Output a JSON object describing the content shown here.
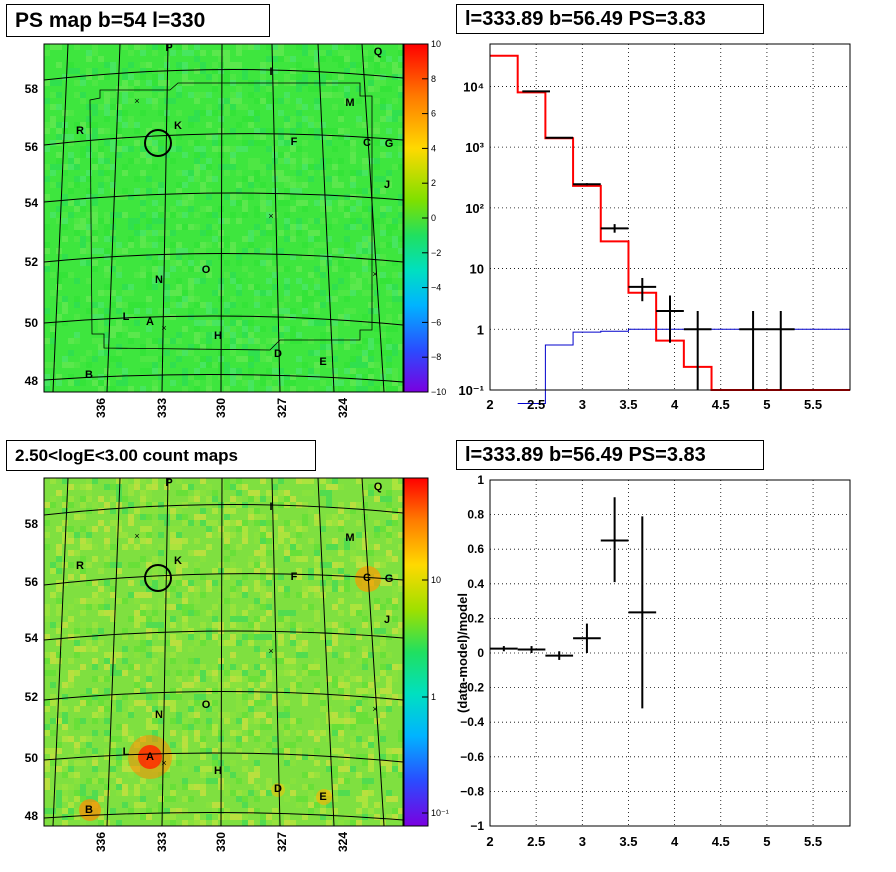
{
  "panels": {
    "top_left": {
      "title": "PS map b=54 l=330"
    },
    "bottom_left": {
      "title": "2.50<logE<3.00 count maps"
    },
    "top_right": {
      "title": "l=333.89 b=56.49 PS=3.83"
    },
    "bottom_right": {
      "title": "l=333.89 b=56.49 PS=3.83"
    }
  },
  "colors": {
    "green": "#34e834",
    "red_model": "#ff0000",
    "blue_bg": "#0000cc",
    "black": "#000000"
  },
  "chart_data": [
    {
      "id": "ps_map",
      "type": "heatmap",
      "title": "PS map b=54 l=330",
      "x_tick_labels": [
        "336",
        "333",
        "330",
        "327",
        "324"
      ],
      "y_tick_labels": [
        "48",
        "50",
        "52",
        "54",
        "56",
        "58"
      ],
      "colorbar": {
        "scale": "linear",
        "min": -10,
        "max": 10,
        "tick_labels": [
          "10",
          "8",
          "6",
          "4",
          "2",
          "0",
          "−2",
          "−4",
          "−6",
          "−8",
          "−10"
        ]
      },
      "source_labels": [
        "P",
        "Q",
        "I",
        "M",
        "R",
        "K",
        "F",
        "C",
        "G",
        "J",
        "N",
        "O",
        "L",
        "A",
        "H",
        "D",
        "E",
        "B"
      ],
      "circle_label": "K"
    },
    {
      "id": "count_map",
      "type": "heatmap",
      "title": "2.50<logE<3.00 count maps",
      "x_tick_labels": [
        "336",
        "333",
        "330",
        "327",
        "324"
      ],
      "y_tick_labels": [
        "48",
        "50",
        "52",
        "54",
        "56",
        "58"
      ],
      "colorbar": {
        "scale": "log",
        "tick_labels": [
          "10",
          "1",
          "10⁻¹"
        ]
      },
      "source_labels": [
        "P",
        "Q",
        "I",
        "M",
        "R",
        "K",
        "F",
        "C",
        "G",
        "J",
        "N",
        "O",
        "L",
        "A",
        "H",
        "D",
        "E",
        "B"
      ]
    },
    {
      "id": "spectrum",
      "type": "line",
      "title": "l=333.89 b=56.49 PS=3.83",
      "y_scale": "log",
      "xlim": [
        2,
        5.9
      ],
      "ylim": [
        0.1,
        50000
      ],
      "x_tick_labels": [
        "2",
        "2.5",
        "3",
        "3.5",
        "4",
        "4.5",
        "5",
        "5.5"
      ],
      "y_tick_labels": [
        "10⁻¹",
        "1",
        "10",
        "10²",
        "10³",
        "10⁴"
      ],
      "model_steps": [
        {
          "x0": 2.0,
          "x1": 2.3,
          "y": 32000
        },
        {
          "x0": 2.3,
          "x1": 2.6,
          "y": 8000
        },
        {
          "x0": 2.6,
          "x1": 2.9,
          "y": 1400
        },
        {
          "x0": 2.9,
          "x1": 3.2,
          "y": 230
        },
        {
          "x0": 3.2,
          "x1": 3.5,
          "y": 28
        },
        {
          "x0": 3.5,
          "x1": 3.8,
          "y": 4
        },
        {
          "x0": 3.8,
          "x1": 4.1,
          "y": 0.65
        },
        {
          "x0": 4.1,
          "x1": 4.4,
          "y": 0.24
        },
        {
          "x0": 4.4,
          "x1": 5.9,
          "y": 0.1
        }
      ],
      "background_steps": [
        {
          "x0": 2.3,
          "x1": 2.6,
          "y": 0.06
        },
        {
          "x0": 2.6,
          "x1": 2.9,
          "y": 0.55
        },
        {
          "x0": 2.9,
          "x1": 3.2,
          "y": 0.9
        },
        {
          "x0": 3.2,
          "x1": 3.5,
          "y": 0.93
        },
        {
          "x0": 3.5,
          "x1": 5.9,
          "y": 1.0
        }
      ],
      "data_points": [
        {
          "x": 2.5,
          "y": 8300,
          "xerr": 0.15,
          "ylo": 8200,
          "yhi": 8400
        },
        {
          "x": 2.75,
          "y": 1430,
          "xerr": 0.15,
          "ylo": 1400,
          "yhi": 1460
        },
        {
          "x": 3.05,
          "y": 245,
          "xerr": 0.15,
          "ylo": 235,
          "yhi": 255
        },
        {
          "x": 3.35,
          "y": 46,
          "xerr": 0.15,
          "ylo": 39,
          "yhi": 54
        },
        {
          "x": 3.65,
          "y": 5,
          "xerr": 0.15,
          "ylo": 2.9,
          "yhi": 7
        },
        {
          "x": 3.95,
          "y": 2,
          "xerr": 0.15,
          "ylo": 0.6,
          "yhi": 3.6
        },
        {
          "x": 4.25,
          "y": 1,
          "xerr": 0.15,
          "ylo": 0.1,
          "yhi": 2
        },
        {
          "x": 4.85,
          "y": 1,
          "xerr": 0.15,
          "ylo": 0.1,
          "yhi": 2
        },
        {
          "x": 5.15,
          "y": 1,
          "xerr": 0.15,
          "ylo": 0.1,
          "yhi": 2
        }
      ]
    },
    {
      "id": "residuals",
      "type": "scatter",
      "title": "l=333.89 b=56.49 PS=3.83",
      "ylabel": "(data-model)/model",
      "xlim": [
        2,
        5.9
      ],
      "ylim": [
        -1,
        1
      ],
      "x_tick_labels": [
        "2",
        "2.5",
        "3",
        "3.5",
        "4",
        "4.5",
        "5",
        "5.5"
      ],
      "y_tick_labels": [
        "1",
        "0.8",
        "0.6",
        "0.4",
        "0.2",
        "0",
        "−0.2",
        "−0.4",
        "−0.6",
        "−0.8",
        "−1"
      ],
      "data_points": [
        {
          "x": 2.15,
          "y": 0.025,
          "xerr": 0.15,
          "ylo": 0.01,
          "yhi": 0.04
        },
        {
          "x": 2.45,
          "y": 0.02,
          "xerr": 0.15,
          "ylo": 0.0,
          "yhi": 0.04
        },
        {
          "x": 2.75,
          "y": -0.015,
          "xerr": 0.15,
          "ylo": -0.04,
          "yhi": 0.01
        },
        {
          "x": 3.05,
          "y": 0.085,
          "xerr": 0.15,
          "ylo": 0.0,
          "yhi": 0.17
        },
        {
          "x": 3.35,
          "y": 0.65,
          "xerr": 0.15,
          "ylo": 0.41,
          "yhi": 0.9
        },
        {
          "x": 3.65,
          "y": 0.235,
          "xerr": 0.15,
          "ylo": -0.32,
          "yhi": 0.79
        }
      ]
    }
  ]
}
